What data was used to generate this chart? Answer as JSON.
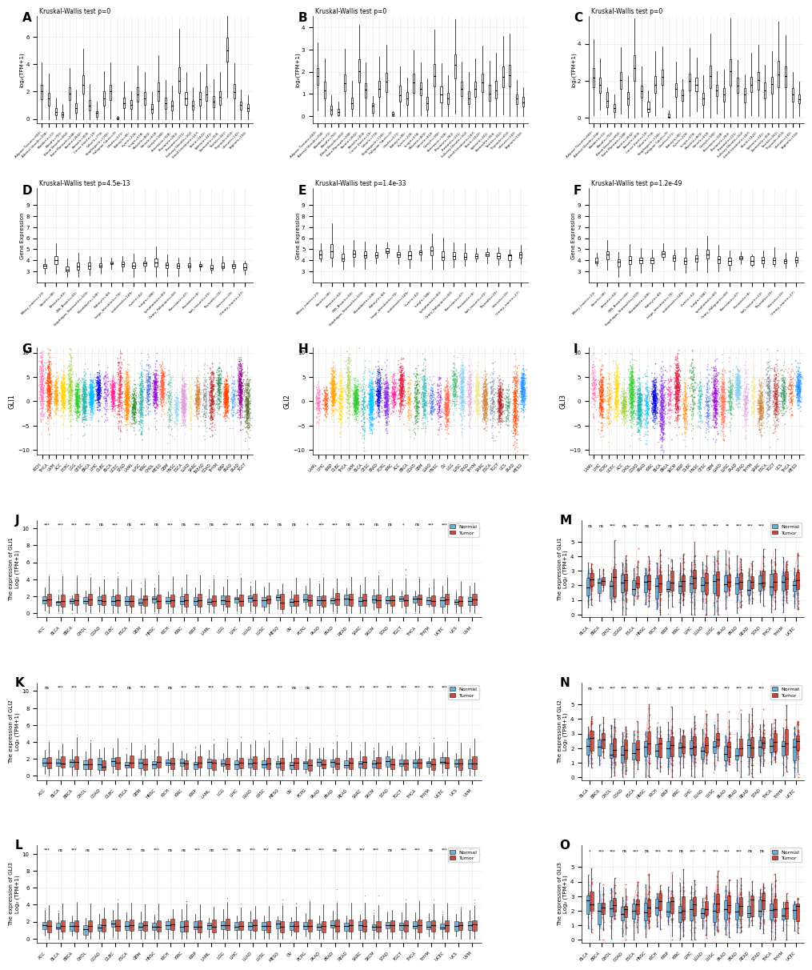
{
  "panels_ABC_title": "Kruskal-Wallis test p=0",
  "panel_D_title": "Kruskal-Wallis test p=4.5e-13",
  "panel_E_title": "Kruskal-Wallis test p=1.4e-33",
  "panel_F_title": "Kruskal-Wallis test p=1.2e-49",
  "ylabel_ABC": "log₂(TPM+1)",
  "ylabel_DEF": "Gene Expression",
  "gtex_labels": [
    "Adipose Tissue(n=663)",
    "Adrenal Gland(n=258)",
    "Bladder(n=21)",
    "Blood(n=755)",
    "Blood Vessel(n=663)",
    "Bone Marrow(n=248)",
    "Brain(n=2642)",
    "Breast(n=459)",
    "Cervix Uteri(n=19)",
    "Colon(n=779)",
    "Esophagus(n=1165)",
    "Fallopian Tube(n=9)",
    "Heart(n=571)",
    "Kidney(n=85)",
    "Liver(n=226)",
    "Lung(n=578)",
    "Muscle(n=803)",
    "Nerve(n=619)",
    "Ovary(n=180)",
    "Pancreas(n=328)",
    "Pituitary(n=283)",
    "Prostate(n=221)",
    "Salivary Gland(n=162)",
    "Small Intestine(n=187)",
    "Skin(n=1422)",
    "Spleen(n=241)",
    "Stomach(n=359)",
    "Testis(n=361)",
    "Thyroid(n=653)",
    "Uterus(n=142)",
    "Vagina(n=156)"
  ],
  "gtex_colors": [
    "#E8855A",
    "#FF6B6B",
    "#A87CCC",
    "#85C1E9",
    "#F0B27A",
    "#AAB7B8",
    "#5DADE2",
    "#F8C471",
    "#ABEBC6",
    "#F1948A",
    "#BB8FCE",
    "#82E0AA",
    "#F8C471",
    "#AED6F1",
    "#A9DFBF",
    "#F0B27A",
    "#5DADE2",
    "#D7BDE2",
    "#FAD7A0",
    "#A3E4D7",
    "#FDEBD0",
    "#D5DBDB",
    "#BFC9CA",
    "#85929E",
    "#AAB7B8",
    "#717D7E",
    "#E8E8E8",
    "#CCC0DA",
    "#D5D8DC",
    "#CCD1D1",
    "#BDC3C7"
  ],
  "ccle_labels": [
    "Biliary_tract(n=23)",
    "Bone(n=38)",
    "Breast(n=60)",
    "CNS_Brain(n=83)",
    "Esophagus_Stomach(n=103)",
    "Fibroblast(n=108)",
    "Kidney(n=40)",
    "Large_Intestine(n=74)",
    "Leukemia(n=149)",
    "Liver(n=42)",
    "Lung(n=188)",
    "Lymphoma(n=60)",
    "Ovary_Fallopian(n=60)",
    "Pancreas(n=47)",
    "Prostate(n=8)",
    "Soft_tissue(n=23)",
    "Thyroid(n=23)",
    "Uterus(n=23)",
    "Urinary_tract(n=27)"
  ],
  "ccle_colors": [
    "#3498DB",
    "#E74C3C",
    "#2ECC71",
    "#F39C12",
    "#9B59B6",
    "#1ABC9C",
    "#E67E22",
    "#16A085",
    "#8E44AD",
    "#2980B9",
    "#27AE60",
    "#F1C40F",
    "#D35400",
    "#C0392B",
    "#7F8C8D",
    "#95A5A6",
    "#BDC3C7",
    "#ABB2B9",
    "#566573"
  ],
  "tcga_G_labels": [
    "KICH",
    "THCA",
    "UVM",
    "ACC",
    "PCPG",
    "LGG",
    "CESC",
    "BRCA",
    "LIHC",
    "DLBC",
    "BLCA",
    "UCEC",
    "STAD",
    "LAML",
    "LUSC",
    "KIRC",
    "CHOL",
    "MESO",
    "GBM",
    "HNSC",
    "ESCA",
    "LUAD",
    "SARC",
    "TREAD",
    "COAD",
    "THYM",
    "KIRP",
    "PRAD",
    "PAAD",
    "TGCT"
  ],
  "tcga_H_labels": [
    "LAML",
    "LIHC",
    "KIRP",
    "DLBC",
    "THCA",
    "UVM",
    "BLCA",
    "CESC",
    "PRAD",
    "PCPG",
    "KIRC",
    "ACC",
    "BRCA",
    "COAD",
    "GBM",
    "LUAD",
    "HNSC",
    "OV",
    "LGG",
    "LUSC",
    "STAD",
    "THYM",
    "SARC",
    "ESCA",
    "TGCT",
    "UCS",
    "PAAD",
    "MESO"
  ],
  "tcga_I_labels": [
    "LAML",
    "LIHC",
    "PCPG",
    "UCEC",
    "ACC",
    "CHOL",
    "COAD",
    "PRAD",
    "KIRC",
    "BLCA",
    "BRCA",
    "SKCM",
    "KIRP",
    "DLBC",
    "HNSC",
    "CESC",
    "GBM",
    "LUAD",
    "LUSC",
    "PAAD",
    "STAD",
    "THYM",
    "SARC",
    "ESCA",
    "TGCT",
    "UCS",
    "THCA",
    "MESO"
  ],
  "scatter_colors": [
    "#FF69B4",
    "#FF4500",
    "#FFA500",
    "#FFD700",
    "#9ACD32",
    "#32CD32",
    "#20B2AA",
    "#00BFFF",
    "#0000CD",
    "#8A2BE2",
    "#FF1493",
    "#DC143C",
    "#FF8C00",
    "#228B22",
    "#20B2AA",
    "#4169E1",
    "#9400D3",
    "#FF6347",
    "#3CB371",
    "#87CEEB",
    "#DDA0DD",
    "#F0E68C",
    "#CD853F",
    "#708090",
    "#B22222",
    "#2E8B57",
    "#FF4500",
    "#1E90FF",
    "#8B008B",
    "#556B2F"
  ],
  "tcga_JKL": [
    "ACC",
    "BLCA",
    "BRCA",
    "CHOL",
    "COAD",
    "DLBC",
    "ESCA",
    "GBM",
    "HNSC",
    "KICH",
    "KIRC",
    "KIRP",
    "LAML",
    "LGG",
    "LIHC",
    "LUAD",
    "LUSC",
    "MESO",
    "OV",
    "PCPG",
    "PAAD",
    "PRAD",
    "READ",
    "SARC",
    "SKCM",
    "STAD",
    "TGCT",
    "THCA",
    "THYM",
    "UCEC",
    "UCS",
    "UVM"
  ],
  "tcga_MNO": [
    "BLCA",
    "BRCA",
    "CHOL",
    "COAD",
    "ESCA",
    "HNSC",
    "KICH",
    "KIRP",
    "KIRC",
    "LIHC",
    "LUAD",
    "LUSC",
    "PAAD",
    "PRAD",
    "READ",
    "STAD",
    "THCA",
    "THYM",
    "UCEC"
  ],
  "sig_J": [
    "***",
    "***",
    "***",
    "***",
    "ns",
    "***",
    "ns",
    "***",
    "ns",
    "***",
    "ns",
    "***",
    "ns",
    "***",
    "***",
    "ns",
    "***",
    "ns",
    "ns",
    "*",
    "***",
    "***",
    "ns",
    "***",
    "ns",
    "ns",
    "*",
    "ns",
    "***",
    "***",
    "ns",
    "ns"
  ],
  "sig_K": [
    "ns",
    "***",
    "***",
    "***",
    "***",
    "***",
    "ns",
    "***",
    "***",
    "ns",
    "***",
    "***",
    "***",
    "***",
    "***",
    "***",
    "***",
    "***",
    "ns",
    "ns",
    "***",
    "***",
    "***",
    "***",
    "***",
    "***",
    "***",
    "***",
    "***",
    "***",
    "ns",
    "ns"
  ],
  "sig_L": [
    "***",
    "ns",
    "***",
    "ns",
    "***",
    "***",
    "***",
    "ns",
    "***",
    "ns",
    "ns",
    "***",
    "ns",
    "***",
    "ns",
    "***",
    "***",
    "***",
    "ns",
    "***",
    "***",
    "ns",
    "***",
    "***",
    "***",
    "ns",
    "***",
    "***",
    "ns",
    "***",
    "***",
    "***"
  ],
  "sig_M": [
    "ns",
    "ns",
    "***",
    "ns",
    "***",
    "ns",
    "***",
    "ns",
    "***",
    "***",
    "***",
    "***",
    "**",
    "***",
    "***",
    "***",
    "***",
    "***",
    "***"
  ],
  "sig_N": [
    "ns",
    "***",
    "***",
    "***",
    "***",
    "***",
    "ns",
    "***",
    "***",
    "***",
    "***",
    "***",
    "***",
    "***",
    "***",
    "***",
    "***",
    "ns",
    "ns"
  ],
  "sig_O": [
    "*",
    "***",
    "***",
    "ns",
    "***",
    "ns",
    "***",
    "***",
    "ns",
    "***",
    "**",
    "***",
    "***",
    "***",
    "ns",
    "ns",
    "***",
    "***",
    "***"
  ],
  "normal_color": "#6BAED6",
  "tumor_color": "#CB4335",
  "bg_color": "#FFFFFF",
  "grid_color": "#E5E5E5"
}
